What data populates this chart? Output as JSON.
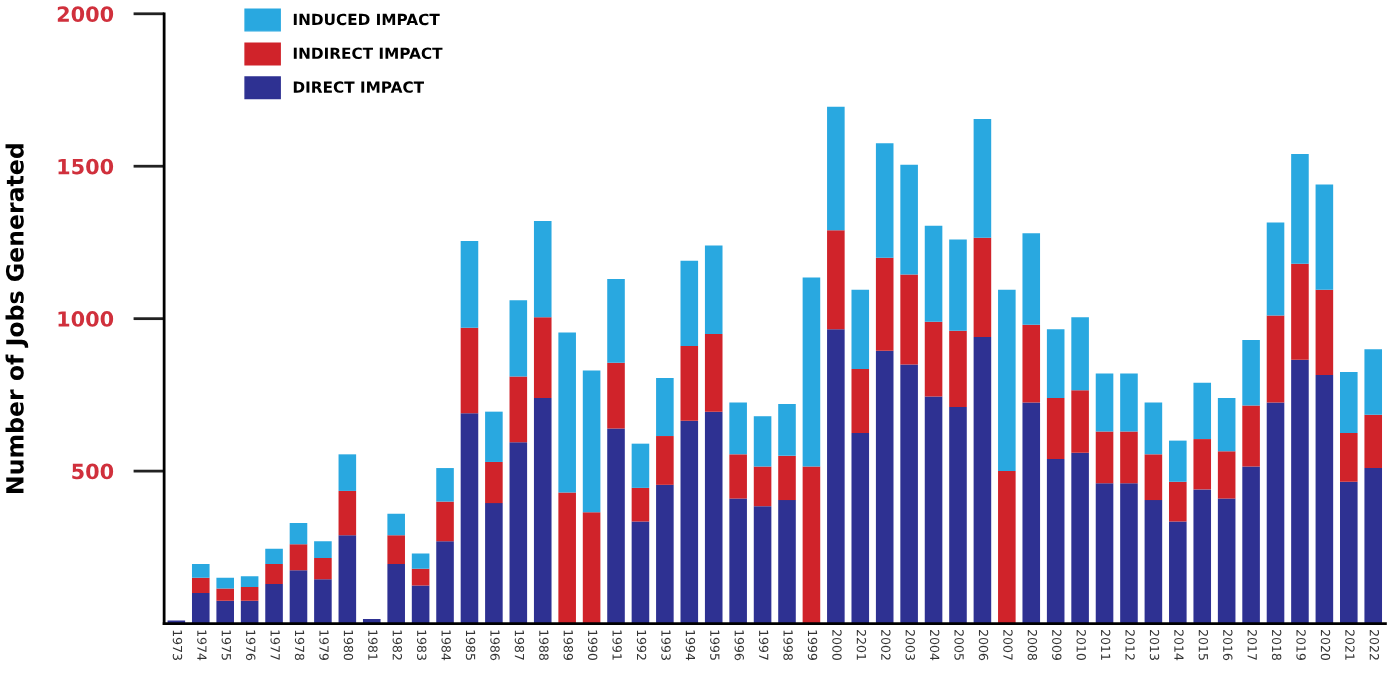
{
  "chart_data": {
    "type": "bar",
    "stacked": true,
    "ylabel": "Number of Jobs Generated",
    "categories": [
      "1973",
      "1974",
      "1975",
      "1976",
      "1977",
      "1978",
      "1979",
      "1980",
      "1981",
      "1982",
      "1983",
      "1984",
      "1985",
      "1986",
      "1987",
      "1988",
      "1989",
      "1990",
      "1991",
      "1992",
      "1993",
      "1994",
      "1995",
      "1996",
      "1997",
      "1998",
      "1999",
      "2000",
      "2201",
      "2002",
      "2003",
      "2004",
      "2005",
      "2006",
      "2007",
      "2008",
      "2009",
      "2010",
      "2011",
      "2012",
      "2013",
      "2014",
      "2015",
      "2016",
      "2017",
      "2018",
      "2019",
      "2020",
      "2021",
      "2022"
    ],
    "series": [
      {
        "name": "DIRECT IMPACT",
        "color": "#2e3192",
        "values": [
          10,
          100,
          75,
          75,
          130,
          175,
          145,
          290,
          15,
          195,
          125,
          270,
          690,
          395,
          595,
          740,
          0,
          0,
          640,
          335,
          455,
          665,
          695,
          410,
          385,
          405,
          0,
          965,
          625,
          895,
          850,
          745,
          710,
          940,
          0,
          725,
          540,
          560,
          460,
          460,
          405,
          335,
          440,
          410,
          515,
          725,
          865,
          815,
          465,
          510
        ]
      },
      {
        "name": "INDIRECT IMPACT",
        "color": "#d0232a",
        "values": [
          0,
          50,
          40,
          45,
          65,
          85,
          70,
          145,
          0,
          95,
          55,
          130,
          280,
          135,
          215,
          265,
          430,
          365,
          215,
          110,
          160,
          245,
          255,
          145,
          130,
          145,
          515,
          325,
          210,
          305,
          295,
          245,
          250,
          325,
          500,
          255,
          200,
          205,
          170,
          170,
          150,
          130,
          165,
          155,
          200,
          285,
          315,
          280,
          160,
          175
        ]
      },
      {
        "name": "INDUCED IMPACT",
        "color": "#29a8e0",
        "values": [
          0,
          45,
          35,
          35,
          50,
          70,
          55,
          120,
          0,
          70,
          50,
          110,
          285,
          165,
          250,
          315,
          525,
          465,
          275,
          145,
          190,
          280,
          290,
          170,
          165,
          170,
          620,
          405,
          260,
          375,
          360,
          315,
          300,
          390,
          595,
          300,
          225,
          240,
          190,
          190,
          170,
          135,
          185,
          175,
          215,
          305,
          360,
          345,
          200,
          215
        ]
      }
    ],
    "ylim": [
      0,
      2000
    ],
    "yticks": [
      500,
      1000,
      1500,
      2000
    ],
    "grid": false,
    "legend": "top left"
  }
}
